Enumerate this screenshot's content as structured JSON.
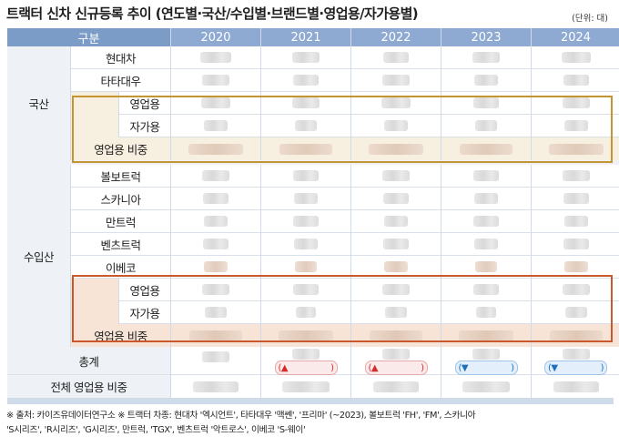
{
  "title": "트랙터 신차 신규등록 추이 (연도별·국산/수입별·브랜드별·영업용/자가용별)",
  "unit": "(단위: 대)",
  "header": {
    "category_label": "구분",
    "years": [
      "2020",
      "2021",
      "2022",
      "2023",
      "2024"
    ]
  },
  "domestic": {
    "group_label": "국산",
    "brands": [
      "현대차",
      "타타대우"
    ],
    "use_labels": [
      "영업용",
      "자가용"
    ],
    "ratio_label": "영업용 비중"
  },
  "imported": {
    "group_label": "수입산",
    "brands": [
      "볼보트럭",
      "스카니아",
      "만트럭",
      "벤츠트럭",
      "이베코"
    ],
    "use_labels": [
      "영업용",
      "자가용"
    ],
    "ratio_label": "영업용 비중"
  },
  "total": {
    "label": "총계",
    "change_symbols": [
      "(▲",
      "(▲",
      "(▼",
      "(▼"
    ],
    "change_close": [
      ")",
      ")",
      ")",
      ")"
    ]
  },
  "overall_ratio_label": "전체 영업용 비중",
  "notes": [
    "※ 출처: 카이즈유데이터연구소   ※ 트랙터 차종: 현대차 '엑시언트', 타타대우 '맥쎈', '프리마' (~2023), 볼보트럭 'FH', 'FM', 스카니아",
    "'S시리즈', 'R시리즈', 'G시리즈', 만트럭, 'TGX', 벤츠트럭 '악트로스', 이베코 'S-웨이'"
  ],
  "colors": {
    "header_bg": "#8eaad2",
    "domestic_box": "#c49430",
    "imported_box": "#c9582c",
    "increase": "#d62b2b",
    "decrease": "#1f6fbf"
  }
}
